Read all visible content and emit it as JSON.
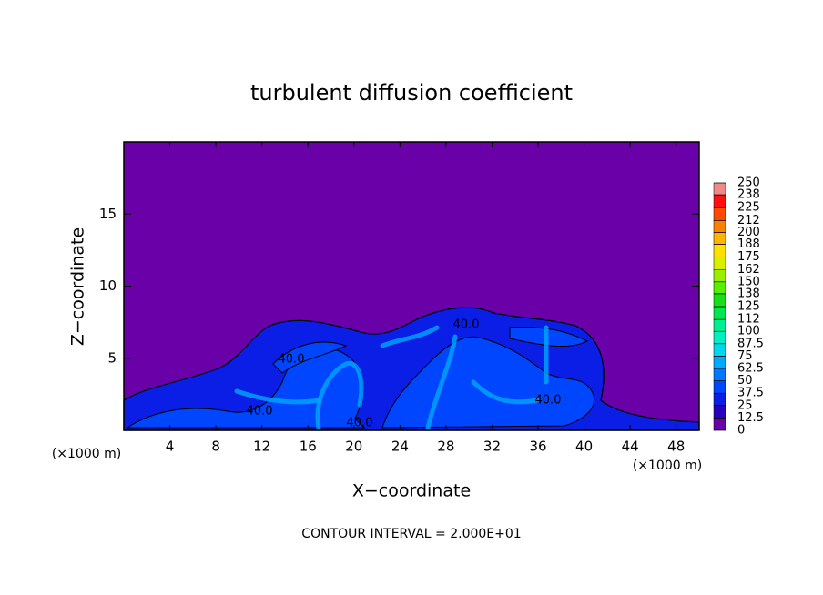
{
  "chart_data": {
    "type": "contour",
    "title": "turbulent diffusion coefficient",
    "x_label": "X−coordinate",
    "y_label": "Z−coordinate",
    "x_unit_left": "(×1000 m)",
    "x_unit_right": "(×1000 m)",
    "footnote": "CONTOUR INTERVAL = 2.000E+01",
    "xlim": [
      0,
      50
    ],
    "ylim": [
      0,
      20
    ],
    "xticks": [
      4,
      8,
      12,
      16,
      20,
      24,
      28,
      32,
      36,
      40,
      44,
      48
    ],
    "yticks": [
      5,
      10,
      15
    ],
    "contour_labels": [
      "40.0",
      "40.0",
      "40.0",
      "40.0",
      "40.0"
    ],
    "colorbar": {
      "levels": [
        0,
        12.5,
        25,
        37.5,
        50,
        62.5,
        75,
        87.5,
        100,
        112,
        125,
        138,
        150,
        162,
        175,
        188,
        200,
        212,
        225,
        238,
        250
      ],
      "colors": [
        "#6a00a8",
        "#2a00c0",
        "#0a1ee6",
        "#0046ff",
        "#0078ff",
        "#00a8ff",
        "#00d8f0",
        "#00f0c0",
        "#00f090",
        "#00e850",
        "#18e018",
        "#58f000",
        "#98f000",
        "#d8f000",
        "#ffe000",
        "#ffb400",
        "#ff8000",
        "#ff4800",
        "#ff1010",
        "#f08888"
      ]
    }
  }
}
